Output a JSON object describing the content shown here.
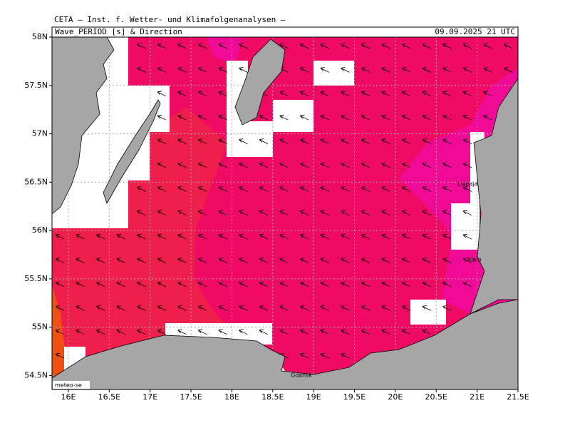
{
  "header": {
    "institute": "CETA – Inst. f. Wetter- und Klimafolgenanalysen –",
    "title": "Wave_PERIOD [s] & Direction",
    "valid_time": "09.09.2025 21 UTC"
  },
  "map": {
    "xlim": [
      15.8,
      21.5
    ],
    "ylim": [
      54.356,
      58
    ],
    "xticks": [
      {
        "value": 16,
        "label": "16E"
      },
      {
        "value": 16.5,
        "label": "16.5E"
      },
      {
        "value": 17,
        "label": "17E"
      },
      {
        "value": 17.5,
        "label": "17.5E"
      },
      {
        "value": 18,
        "label": "18E"
      },
      {
        "value": 18.5,
        "label": "18.5E"
      },
      {
        "value": 19,
        "label": "19E"
      },
      {
        "value": 19.5,
        "label": "19.5E"
      },
      {
        "value": 20,
        "label": "20E"
      },
      {
        "value": 20.5,
        "label": "20.5E"
      },
      {
        "value": 21,
        "label": "21E"
      },
      {
        "value": 21.5,
        "label": "21.5E"
      }
    ],
    "yticks": [
      {
        "value": 54.5,
        "label": "54.5N"
      },
      {
        "value": 55,
        "label": "55N"
      },
      {
        "value": 55.5,
        "label": "55.5N"
      },
      {
        "value": 56,
        "label": "56N"
      },
      {
        "value": 56.5,
        "label": "56.5N"
      },
      {
        "value": 57,
        "label": "57N"
      },
      {
        "value": 57.5,
        "label": "57.5N"
      },
      {
        "value": 58,
        "label": "58N"
      }
    ],
    "places": [
      {
        "label": "Liepaja"
      },
      {
        "label": "Klaip"
      },
      {
        "label": "Gdansk"
      }
    ],
    "credit": "meteo-se"
  }
}
